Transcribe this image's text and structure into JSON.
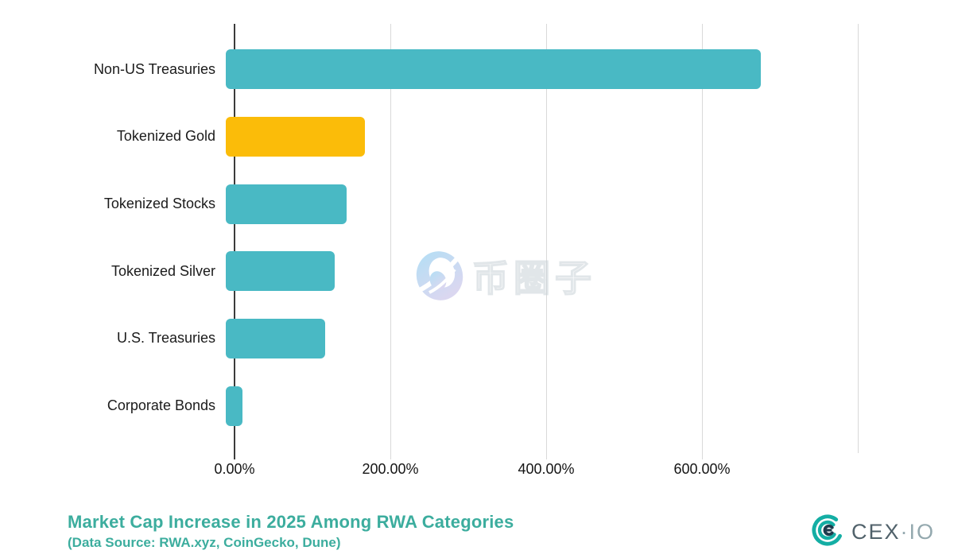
{
  "chart_data": {
    "type": "bar",
    "orientation": "horizontal",
    "title": "Market Cap Increase in 2025 Among RWA Categories",
    "subtitle": "(Data Source: RWA.xyz, CoinGecko, Dune)",
    "categories": [
      "Non-US Treasuries",
      "Tokenized Gold",
      "Tokenized Stocks",
      "Tokenized Silver",
      "U.S. Treasuries",
      "Corporate Bonds"
    ],
    "values": [
      676,
      176,
      153,
      138,
      126,
      21
    ],
    "value_unit": "%",
    "xlabel": "",
    "ylabel": "",
    "xlim": [
      0,
      800
    ],
    "x_ticks": [
      {
        "value": 0,
        "label": "0.00%"
      },
      {
        "value": 200,
        "label": "200.00%"
      },
      {
        "value": 400,
        "label": "400.00%"
      },
      {
        "value": 600,
        "label": "600.00%"
      }
    ],
    "gridline_values": [
      200,
      400,
      600,
      800
    ],
    "grid": "vertical",
    "legend": "none",
    "bar_default_color": "#49B9C4",
    "bar_highlight_color": "#FBBC09",
    "highlighted_category": "Tokenized Gold"
  },
  "branding": {
    "logo_name": "CEX.IO",
    "text_primary": "CEX",
    "separator": "·",
    "text_secondary": "IO"
  },
  "watermark": {
    "text": "币圈子"
  },
  "colors": {
    "background": "#FFFFFF",
    "title": "#3CAD9E",
    "bar_teal": "#49B9C4",
    "bar_gold": "#FBBC09",
    "axis_line": "#3B3B3B",
    "gridline": "#D9D9D9",
    "tick_label": "#141414",
    "category_label": "#1B1B1B",
    "logo_teal": "#14AEA4",
    "logo_navy": "#1E3B4D",
    "logo_text": "#51626B"
  }
}
